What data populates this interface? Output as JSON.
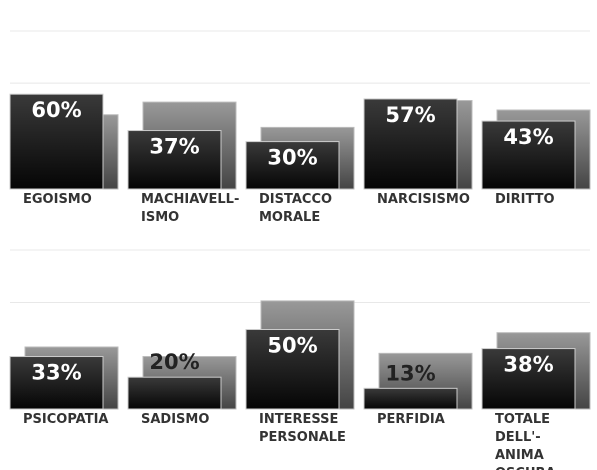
{
  "chart_data": [
    {
      "type": "bar",
      "categories": [
        "EGOISMO",
        "MACHIAVELL-\nISMO",
        "DISTACCO\nMORALE",
        "NARCISISMO",
        "DIRITTO"
      ],
      "series": [
        {
          "color": "#1a1a1a",
          "values": [
            60,
            37,
            30,
            57,
            43
          ],
          "value_labels": [
            "60%",
            "37%",
            "30%",
            "57%",
            "43%"
          ]
        },
        {
          "color": "#6e6e6e",
          "values": [
            47,
            55,
            39,
            56,
            50
          ]
        }
      ],
      "ylim": [
        0,
        100
      ],
      "yticks": [
        67,
        100
      ],
      "grid": true
    },
    {
      "type": "bar",
      "categories": [
        "PSICOPATIA",
        "SADISMO",
        "INTERESSE\nPERSONALE",
        "PERFIDIA",
        "TOTALE DELL'-\nANIMA OSCURA"
      ],
      "series": [
        {
          "color": "#1a1a1a",
          "values": [
            33,
            20,
            50,
            13,
            38
          ],
          "value_labels": [
            "33%",
            "20%",
            "50%",
            "13%",
            "38%"
          ]
        },
        {
          "color": "#6e6e6e",
          "values": [
            39,
            33,
            68,
            35,
            48
          ]
        }
      ],
      "ylim": [
        0,
        100
      ],
      "yticks": [
        67,
        100
      ],
      "grid": true
    }
  ]
}
